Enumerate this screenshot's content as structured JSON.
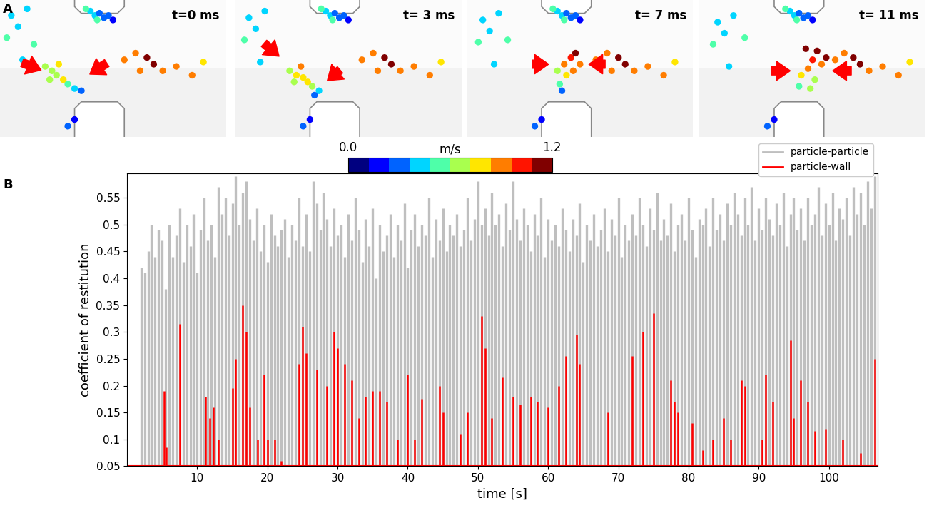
{
  "panel_labels": [
    "A",
    "B"
  ],
  "simulation_frames": [
    {
      "time_label": "t=0 ms",
      "particles": [
        [
          40,
          57,
          0.4
        ],
        [
          42,
          55,
          0.45
        ],
        [
          44,
          56,
          0.35
        ],
        [
          46,
          54,
          0.3
        ],
        [
          48,
          55,
          0.25
        ],
        [
          50,
          53,
          0.2
        ],
        [
          43,
          53,
          0.5
        ],
        [
          38,
          58,
          0.55
        ],
        [
          5,
          55,
          0.45
        ],
        [
          8,
          50,
          0.4
        ],
        [
          3,
          45,
          0.5
        ],
        [
          12,
          58,
          0.4
        ],
        [
          15,
          42,
          0.55
        ],
        [
          10,
          35,
          0.45
        ],
        [
          20,
          32,
          0.6
        ],
        [
          23,
          30,
          0.65
        ],
        [
          25,
          28,
          0.7
        ],
        [
          28,
          26,
          0.75
        ],
        [
          30,
          24,
          0.55
        ],
        [
          33,
          22,
          0.4
        ],
        [
          36,
          21,
          0.35
        ],
        [
          26,
          33,
          0.8
        ],
        [
          22,
          26,
          0.6
        ],
        [
          55,
          35,
          0.85
        ],
        [
          60,
          38,
          0.95
        ],
        [
          65,
          36,
          1.1
        ],
        [
          68,
          33,
          1.15
        ],
        [
          72,
          30,
          0.95
        ],
        [
          78,
          32,
          0.9
        ],
        [
          85,
          28,
          0.85
        ],
        [
          90,
          34,
          0.8
        ],
        [
          62,
          30,
          0.9
        ],
        [
          30,
          5,
          0.3
        ],
        [
          33,
          8,
          0.2
        ]
      ]
    },
    {
      "time_label": "t= 3 ms",
      "particles": [
        [
          40,
          57,
          0.4
        ],
        [
          42,
          55,
          0.45
        ],
        [
          44,
          56,
          0.35
        ],
        [
          46,
          54,
          0.3
        ],
        [
          48,
          55,
          0.25
        ],
        [
          50,
          53,
          0.2
        ],
        [
          43,
          53,
          0.5
        ],
        [
          38,
          58,
          0.55
        ],
        [
          6,
          54,
          0.45
        ],
        [
          9,
          49,
          0.4
        ],
        [
          4,
          44,
          0.5
        ],
        [
          13,
          57,
          0.4
        ],
        [
          16,
          41,
          0.55
        ],
        [
          11,
          34,
          0.45
        ],
        [
          24,
          30,
          0.6
        ],
        [
          27,
          28,
          0.75
        ],
        [
          30,
          27,
          0.8
        ],
        [
          32,
          25,
          0.8
        ],
        [
          34,
          23,
          0.6
        ],
        [
          37,
          21,
          0.45
        ],
        [
          29,
          32,
          0.85
        ],
        [
          26,
          25,
          0.7
        ],
        [
          35,
          19,
          0.35
        ],
        [
          56,
          35,
          0.85
        ],
        [
          61,
          38,
          0.95
        ],
        [
          66,
          36,
          1.1
        ],
        [
          69,
          33,
          1.15
        ],
        [
          73,
          30,
          0.95
        ],
        [
          79,
          32,
          0.9
        ],
        [
          86,
          28,
          0.85
        ],
        [
          91,
          34,
          0.8
        ],
        [
          63,
          30,
          0.9
        ],
        [
          30,
          5,
          0.3
        ],
        [
          33,
          8,
          0.2
        ]
      ]
    },
    {
      "time_label": "t= 7 ms",
      "particles": [
        [
          40,
          57,
          0.4
        ],
        [
          42,
          55,
          0.45
        ],
        [
          44,
          56,
          0.35
        ],
        [
          46,
          54,
          0.3
        ],
        [
          48,
          55,
          0.25
        ],
        [
          50,
          53,
          0.2
        ],
        [
          43,
          53,
          0.5
        ],
        [
          38,
          58,
          0.55
        ],
        [
          7,
          53,
          0.45
        ],
        [
          10,
          48,
          0.4
        ],
        [
          5,
          43,
          0.5
        ],
        [
          14,
          56,
          0.4
        ],
        [
          18,
          44,
          0.55
        ],
        [
          12,
          33,
          0.45
        ],
        [
          40,
          30,
          0.7
        ],
        [
          43,
          33,
          0.85
        ],
        [
          46,
          36,
          1.0
        ],
        [
          48,
          38,
          1.15
        ],
        [
          44,
          28,
          0.75
        ],
        [
          41,
          24,
          0.5
        ],
        [
          42,
          21,
          0.35
        ],
        [
          47,
          30,
          0.85
        ],
        [
          50,
          33,
          0.95
        ],
        [
          57,
          35,
          0.85
        ],
        [
          62,
          38,
          0.95
        ],
        [
          67,
          36,
          1.1
        ],
        [
          70,
          33,
          1.15
        ],
        [
          74,
          30,
          0.95
        ],
        [
          80,
          32,
          0.9
        ],
        [
          87,
          28,
          0.85
        ],
        [
          92,
          34,
          0.8
        ],
        [
          64,
          30,
          0.9
        ],
        [
          30,
          5,
          0.3
        ],
        [
          33,
          8,
          0.2
        ]
      ]
    },
    {
      "time_label": "t= 11 ms",
      "particles": [
        [
          40,
          57,
          0.4
        ],
        [
          42,
          55,
          0.45
        ],
        [
          44,
          56,
          0.35
        ],
        [
          46,
          54,
          0.3
        ],
        [
          48,
          55,
          0.25
        ],
        [
          50,
          53,
          0.2
        ],
        [
          43,
          53,
          0.5
        ],
        [
          38,
          58,
          0.55
        ],
        [
          8,
          52,
          0.45
        ],
        [
          11,
          47,
          0.4
        ],
        [
          6,
          42,
          0.5
        ],
        [
          15,
          55,
          0.4
        ],
        [
          20,
          45,
          0.55
        ],
        [
          13,
          32,
          0.45
        ],
        [
          45,
          28,
          0.75
        ],
        [
          48,
          31,
          0.85
        ],
        [
          50,
          35,
          1.0
        ],
        [
          52,
          39,
          1.2
        ],
        [
          47,
          40,
          1.15
        ],
        [
          54,
          33,
          0.9
        ],
        [
          44,
          23,
          0.55
        ],
        [
          51,
          26,
          0.7
        ],
        [
          56,
          36,
          1.1
        ],
        [
          49,
          22,
          0.6
        ],
        [
          60,
          35,
          0.85
        ],
        [
          64,
          38,
          0.95
        ],
        [
          68,
          36,
          1.1
        ],
        [
          71,
          33,
          1.15
        ],
        [
          75,
          30,
          0.95
        ],
        [
          81,
          32,
          0.9
        ],
        [
          88,
          28,
          0.85
        ],
        [
          93,
          34,
          0.8
        ],
        [
          30,
          5,
          0.3
        ],
        [
          33,
          8,
          0.2
        ]
      ]
    }
  ],
  "colorbar": {
    "label": "m/s",
    "range": [
      0.0,
      1.2
    ],
    "ticks": [
      {
        "value": 0.0,
        "label": "0.0"
      },
      {
        "value": 1.2,
        "label": "1.2"
      }
    ]
  },
  "chart_data": {
    "type": "line",
    "xlabel": "time [s]",
    "ylabel": "coefficient of restitution",
    "xlim": [
      0,
      107
    ],
    "ylim": [
      0.05,
      0.595
    ],
    "xticks": [
      10,
      20,
      30,
      40,
      50,
      60,
      70,
      80,
      90,
      100
    ],
    "yticks": [
      0.05,
      0.1,
      0.15,
      0.2,
      0.25,
      0.3,
      0.35,
      0.4,
      0.45,
      0.5,
      0.55
    ],
    "legend": "upper right",
    "series": [
      {
        "name": "particle-particle",
        "color": "#bfbfbf",
        "type": "stem",
        "x": [
          2,
          2.5,
          3,
          3.5,
          4,
          4.5,
          5,
          5.5,
          6,
          6.5,
          7,
          7.5,
          8,
          8.5,
          9,
          9.5,
          10,
          10.5,
          11,
          11.5,
          12,
          12.5,
          13,
          13.5,
          14,
          14.5,
          15,
          15.5,
          16,
          16.5,
          17,
          17.5,
          18,
          18.5,
          19,
          19.5,
          20,
          20.5,
          21,
          21.5,
          22,
          22.5,
          23,
          23.5,
          24,
          24.5,
          25,
          25.5,
          26,
          26.5,
          27,
          27.5,
          28,
          28.5,
          29,
          29.5,
          30,
          30.5,
          31,
          31.5,
          32,
          32.5,
          33,
          33.5,
          34,
          34.5,
          35,
          35.5,
          36,
          36.5,
          37,
          37.5,
          38,
          38.5,
          39,
          39.5,
          40,
          40.5,
          41,
          41.5,
          42,
          42.5,
          43,
          43.5,
          44,
          44.5,
          45,
          45.5,
          46,
          46.5,
          47,
          47.5,
          48,
          48.5,
          49,
          49.5,
          50,
          50.5,
          51,
          51.5,
          52,
          52.5,
          53,
          53.5,
          54,
          54.5,
          55,
          55.5,
          56,
          56.5,
          57,
          57.5,
          58,
          58.5,
          59,
          59.5,
          60,
          60.5,
          61,
          61.5,
          62,
          62.5,
          63,
          63.5,
          64,
          64.5,
          65,
          65.5,
          66,
          66.5,
          67,
          67.5,
          68,
          68.5,
          69,
          69.5,
          70,
          70.5,
          71,
          71.5,
          72,
          72.5,
          73,
          73.5,
          74,
          74.5,
          75,
          75.5,
          76,
          76.5,
          77,
          77.5,
          78,
          78.5,
          79,
          79.5,
          80,
          80.5,
          81,
          81.5,
          82,
          82.5,
          83,
          83.5,
          84,
          84.5,
          85,
          85.5,
          86,
          86.5,
          87,
          87.5,
          88,
          88.5,
          89,
          89.5,
          90,
          90.5,
          91,
          91.5,
          92,
          92.5,
          93,
          93.5,
          94,
          94.5,
          95,
          95.5,
          96,
          96.5,
          97,
          97.5,
          98,
          98.5,
          99,
          99.5,
          100,
          100.5,
          101,
          101.5,
          102,
          102.5,
          103,
          103.5,
          104,
          104.5,
          105,
          105.5,
          106,
          106.5
        ],
        "values": [
          0.42,
          0.41,
          0.45,
          0.5,
          0.44,
          0.49,
          0.47,
          0.38,
          0.5,
          0.44,
          0.48,
          0.53,
          0.43,
          0.5,
          0.46,
          0.52,
          0.41,
          0.49,
          0.55,
          0.47,
          0.5,
          0.44,
          0.57,
          0.52,
          0.55,
          0.48,
          0.54,
          0.59,
          0.5,
          0.56,
          0.58,
          0.51,
          0.47,
          0.53,
          0.45,
          0.5,
          0.43,
          0.52,
          0.48,
          0.46,
          0.49,
          0.51,
          0.44,
          0.5,
          0.47,
          0.55,
          0.46,
          0.52,
          0.45,
          0.58,
          0.54,
          0.49,
          0.56,
          0.51,
          0.46,
          0.53,
          0.48,
          0.5,
          0.44,
          0.52,
          0.47,
          0.55,
          0.49,
          0.43,
          0.51,
          0.46,
          0.53,
          0.4,
          0.5,
          0.45,
          0.48,
          0.52,
          0.44,
          0.5,
          0.47,
          0.54,
          0.42,
          0.49,
          0.52,
          0.46,
          0.5,
          0.48,
          0.55,
          0.44,
          0.51,
          0.47,
          0.53,
          0.45,
          0.5,
          0.48,
          0.52,
          0.46,
          0.49,
          0.55,
          0.47,
          0.51,
          0.58,
          0.5,
          0.53,
          0.48,
          0.56,
          0.5,
          0.52,
          0.46,
          0.54,
          0.49,
          0.58,
          0.51,
          0.47,
          0.53,
          0.5,
          0.45,
          0.52,
          0.48,
          0.55,
          0.44,
          0.51,
          0.47,
          0.5,
          0.46,
          0.53,
          0.49,
          0.45,
          0.51,
          0.48,
          0.54,
          0.43,
          0.5,
          0.47,
          0.52,
          0.46,
          0.49,
          0.53,
          0.45,
          0.51,
          0.48,
          0.55,
          0.44,
          0.5,
          0.47,
          0.52,
          0.48,
          0.55,
          0.5,
          0.46,
          0.53,
          0.49,
          0.56,
          0.47,
          0.51,
          0.48,
          0.54,
          0.45,
          0.5,
          0.52,
          0.47,
          0.55,
          0.49,
          0.44,
          0.51,
          0.5,
          0.53,
          0.46,
          0.55,
          0.49,
          0.52,
          0.47,
          0.54,
          0.5,
          0.56,
          0.52,
          0.48,
          0.55,
          0.5,
          0.57,
          0.47,
          0.53,
          0.49,
          0.55,
          0.51,
          0.48,
          0.54,
          0.5,
          0.56,
          0.46,
          0.52,
          0.55,
          0.49,
          0.53,
          0.47,
          0.55,
          0.5,
          0.52,
          0.57,
          0.48,
          0.54,
          0.5,
          0.56,
          0.47,
          0.53,
          0.51,
          0.55,
          0.48,
          0.57,
          0.52,
          0.56,
          0.5,
          0.58,
          0.53,
          0.59
        ]
      },
      {
        "name": "particle-wall",
        "color": "#ff0000",
        "type": "stem",
        "x": [
          5.3,
          5.6,
          7.5,
          11.2,
          11.8,
          12.3,
          13,
          15,
          15.5,
          16.5,
          17,
          17.5,
          18.6,
          19.5,
          20,
          21,
          22,
          24.5,
          25,
          25.5,
          27,
          28.5,
          29.5,
          30,
          31,
          32,
          33,
          34,
          35,
          36,
          37,
          38.5,
          40,
          41,
          42,
          44.5,
          45,
          47.5,
          48.5,
          50.5,
          51,
          52,
          53.5,
          55,
          56,
          57.5,
          58.5,
          60,
          61.5,
          62.5,
          64,
          64.5,
          68.5,
          72,
          73.5,
          75,
          77.5,
          78,
          78.5,
          80.5,
          82,
          83.5,
          85,
          86,
          87.5,
          88,
          90.5,
          91,
          92,
          94.5,
          95,
          96,
          97,
          98,
          99.5,
          102,
          104.5,
          106.5
        ],
        "values": [
          0.19,
          0.085,
          0.315,
          0.18,
          0.14,
          0.16,
          0.1,
          0.195,
          0.25,
          0.35,
          0.3,
          0.16,
          0.1,
          0.22,
          0.1,
          0.1,
          0.06,
          0.24,
          0.31,
          0.26,
          0.23,
          0.2,
          0.3,
          0.27,
          0.24,
          0.21,
          0.14,
          0.18,
          0.19,
          0.19,
          0.17,
          0.1,
          0.22,
          0.1,
          0.175,
          0.2,
          0.15,
          0.11,
          0.15,
          0.33,
          0.27,
          0.14,
          0.215,
          0.18,
          0.165,
          0.18,
          0.17,
          0.16,
          0.2,
          0.255,
          0.295,
          0.24,
          0.15,
          0.255,
          0.3,
          0.335,
          0.21,
          0.17,
          0.15,
          0.13,
          0.08,
          0.1,
          0.14,
          0.1,
          0.21,
          0.2,
          0.1,
          0.22,
          0.17,
          0.285,
          0.14,
          0.21,
          0.17,
          0.115,
          0.12,
          0.1,
          0.075,
          0.25
        ]
      }
    ]
  }
}
